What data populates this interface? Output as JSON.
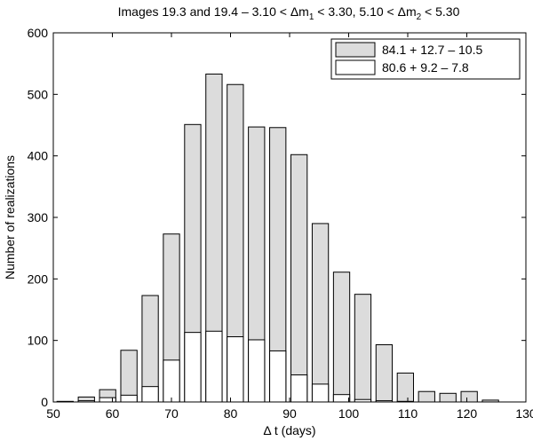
{
  "chart_data": {
    "type": "bar",
    "title": "Images 19.3 and 19.4 – 3.10 < Δm₁ < 3.30, 5.10 < Δm₂ < 5.30",
    "title_parts": {
      "pre": "Images 19.3 and 19.4 – 3.10 < Δm",
      "sub1": "1",
      "mid": " < 3.30, 5.10 < Δm",
      "sub2": "2",
      "post": " < 5.30"
    },
    "xlabel": "Δ t (days)",
    "ylabel": "Number of realizations",
    "xlim": [
      50,
      130
    ],
    "ylim": [
      0,
      600
    ],
    "xticks": [
      50,
      60,
      70,
      80,
      90,
      100,
      110,
      120,
      130
    ],
    "yticks": [
      0,
      100,
      200,
      300,
      400,
      500,
      600
    ],
    "grid": false,
    "legend_position": "top-right",
    "bar_width": 2.75,
    "x": [
      52,
      55.6,
      59.2,
      62.8,
      66.4,
      70,
      73.6,
      77.2,
      80.8,
      84.4,
      88,
      91.6,
      95.2,
      98.8,
      102.4,
      106,
      109.6,
      113.2,
      116.8,
      120.4,
      124
    ],
    "series": [
      {
        "name": "84.1 + 12.7 – 10.5",
        "color": "#dcdcdc",
        "values": [
          1,
          8,
          20,
          84,
          173,
          273,
          451,
          533,
          516,
          447,
          446,
          402,
          290,
          211,
          175,
          93,
          47,
          17,
          14,
          17,
          3
        ]
      },
      {
        "name": "80.6 + 9.2 – 7.8",
        "color": "#ffffff",
        "values": [
          0,
          2,
          7,
          11,
          25,
          68,
          113,
          115,
          106,
          101,
          83,
          44,
          29,
          12,
          4,
          2,
          1,
          0,
          0,
          0,
          0
        ]
      }
    ]
  }
}
